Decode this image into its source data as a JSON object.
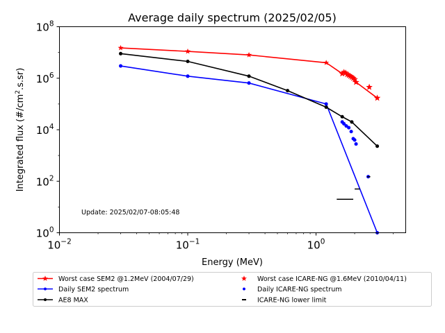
{
  "chart_data": {
    "type": "line",
    "title": "Average daily spectrum (2025/02/05)",
    "xlabel": "Energy (MeV)",
    "ylabel_main": "Integrated flux (#/cm",
    "ylabel_sup": "2",
    "ylabel_tail": ".s.sr)",
    "x_scale": "log",
    "y_scale": "log",
    "xlim": [
      0.01,
      5
    ],
    "ylim": [
      1,
      100000000
    ],
    "x_ticks": [
      {
        "value": 0.01,
        "base": "10",
        "exp": "−2"
      },
      {
        "value": 0.1,
        "base": "10",
        "exp": "−1"
      },
      {
        "value": 1,
        "base": "10",
        "exp": "0"
      }
    ],
    "y_ticks": [
      {
        "value": 1,
        "base": "10",
        "exp": "0"
      },
      {
        "value": 100,
        "base": "10",
        "exp": "2"
      },
      {
        "value": 10000,
        "base": "10",
        "exp": "4"
      },
      {
        "value": 1000000,
        "base": "10",
        "exp": "6"
      },
      {
        "value": 100000000,
        "base": "10",
        "exp": "8"
      }
    ],
    "annotation": "Update: 2025/02/07-08:05:48",
    "grid": false,
    "legend_position": "below",
    "colors": {
      "red": "#ff0000",
      "blue": "#0000ff",
      "black": "#000000"
    },
    "series": [
      {
        "name": "Worst case SEM2 @1.2MeV (2004/07/29)",
        "color": "#ff0000",
        "style": "line",
        "marker": "star",
        "x": [
          0.03,
          0.1,
          0.3,
          1.2,
          1.6,
          1.65,
          1.7,
          1.75,
          1.8,
          1.85,
          1.9,
          1.95,
          2.0,
          2.05,
          3.0
        ],
        "y": [
          15000000,
          11000000,
          8000000,
          4000000,
          1500000,
          1700000,
          1600000,
          1400000,
          1300000,
          1200000,
          1100000,
          1000000,
          900000,
          700000,
          170000
        ]
      },
      {
        "name": "Daily SEM2 spectrum",
        "color": "#0000ff",
        "style": "line",
        "marker": "dot",
        "x": [
          0.03,
          0.1,
          0.3,
          1.2,
          3.0
        ],
        "y": [
          3000000,
          1200000,
          650000,
          100000,
          1
        ]
      },
      {
        "name": "AE8 MAX",
        "color": "#000000",
        "style": "line",
        "marker": "dot",
        "x": [
          0.03,
          0.1,
          0.3,
          0.6,
          1.2,
          1.6,
          1.9,
          3.0
        ],
        "y": [
          9000000,
          4500000,
          1200000,
          330000,
          75000,
          32000,
          20000,
          2300
        ]
      },
      {
        "name": "Worst case ICARE-NG @1.6MeV (2010/04/11)",
        "color": "#ff0000",
        "style": "scatter",
        "marker": "star",
        "x": [
          1.6,
          1.65,
          1.7,
          1.75,
          1.8,
          1.85,
          1.9,
          1.95,
          2.0,
          2.05,
          2.6,
          3.0
        ],
        "y": [
          1500000,
          1700000,
          1600000,
          1400000,
          1300000,
          1200000,
          1100000,
          1000000,
          900000,
          700000,
          450000,
          170000
        ]
      },
      {
        "name": "Daily ICARE-NG spectrum",
        "color": "#0000ff",
        "style": "scatter",
        "marker": "dot",
        "x": [
          1.6,
          1.65,
          1.72,
          1.8,
          1.88,
          1.95,
          2.0,
          2.05,
          2.55
        ],
        "y": [
          20000,
          17000,
          14000,
          12000,
          8500,
          4500,
          4000,
          2800,
          150
        ]
      },
      {
        "name": "ICARE-NG lower limit",
        "color": "#000000",
        "style": "hline",
        "segments": [
          {
            "x0": 1.45,
            "x1": 1.95,
            "y": 20
          },
          {
            "x0": 2.0,
            "x1": 2.2,
            "y": 50
          },
          {
            "x0": 2.5,
            "x1": 2.65,
            "y": 150
          }
        ]
      }
    ],
    "legend": [
      {
        "label": "Worst case SEM2 @1.2MeV (2004/07/29)",
        "color": "#ff0000",
        "line": true,
        "marker": "star"
      },
      {
        "label": "Worst case ICARE-NG @1.6MeV (2010/04/11)",
        "color": "#ff0000",
        "line": false,
        "marker": "star"
      },
      {
        "label": "Daily SEM2 spectrum",
        "color": "#0000ff",
        "line": true,
        "marker": "dot"
      },
      {
        "label": "Daily ICARE-NG spectrum",
        "color": "#0000ff",
        "line": false,
        "marker": "dot"
      },
      {
        "label": "AE8 MAX",
        "color": "#000000",
        "line": true,
        "marker": "dot"
      },
      {
        "label": "ICARE-NG lower limit",
        "color": "#000000",
        "line": false,
        "marker": "dash"
      }
    ]
  }
}
